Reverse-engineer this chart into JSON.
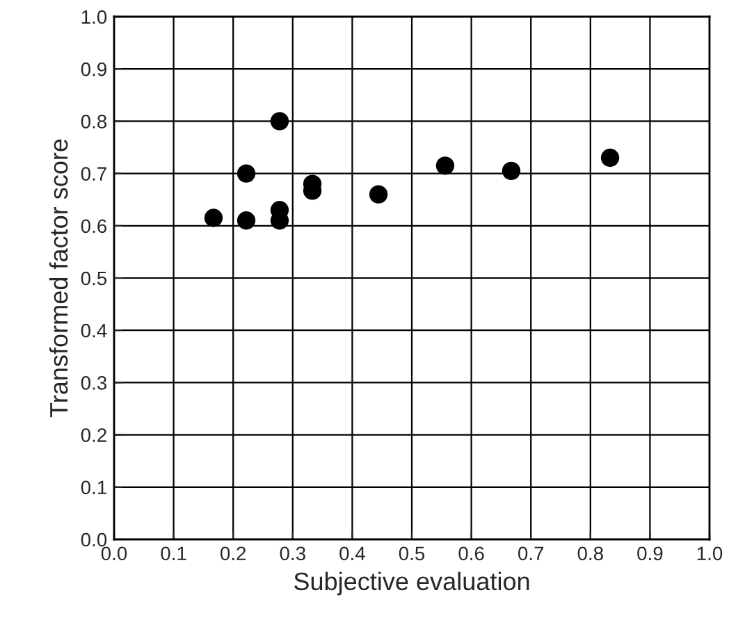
{
  "chart_data": {
    "type": "scatter",
    "xlabel": "Subjective evaluation",
    "ylabel": "Transformed factor score",
    "x": [
      0.167,
      0.222,
      0.222,
      0.278,
      0.278,
      0.278,
      0.333,
      0.333,
      0.444,
      0.556,
      0.667,
      0.833
    ],
    "series": [
      {
        "color": "#000000",
        "values": [
          0.615,
          0.61,
          0.7,
          0.8,
          0.63,
          0.61,
          0.68,
          0.667,
          0.66,
          0.715,
          0.705,
          0.73
        ]
      }
    ],
    "xlim": [
      0.0,
      1.0
    ],
    "ylim": [
      0.0,
      1.0
    ],
    "xticks": [
      {
        "value": 0,
        "label": "0.0"
      },
      0.1,
      0.2,
      0.3,
      0.4,
      0.5,
      0.6,
      0.7,
      0.8,
      0.9,
      {
        "value": 1,
        "label": "1.0"
      }
    ],
    "yticks": [
      {
        "value": 0,
        "label": "0.0"
      },
      0.1,
      0.2,
      0.3,
      0.4,
      0.5,
      0.6,
      0.7,
      0.8,
      0.9,
      {
        "value": 1,
        "label": "1.0"
      }
    ],
    "grid": true,
    "marker": "circle",
    "legend": false
  }
}
